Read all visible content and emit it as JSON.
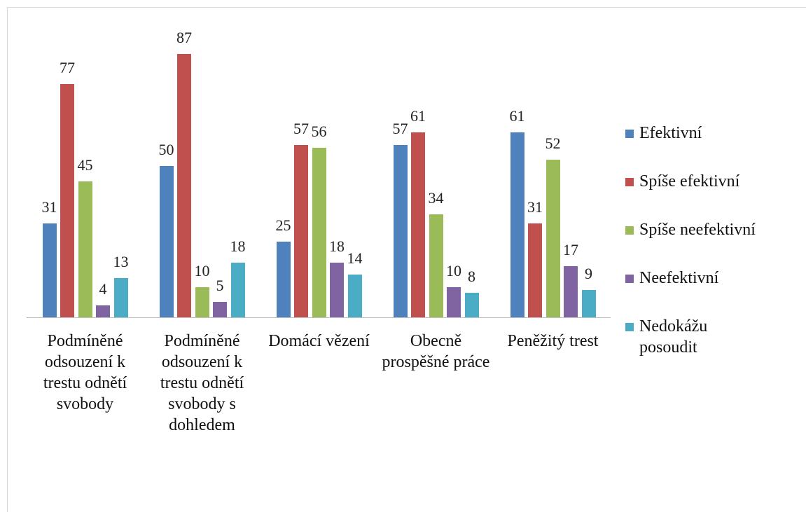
{
  "chart_data": {
    "type": "bar",
    "categories": [
      "Podmíněné odsouzení k trestu odnětí svobody",
      "Podmíněné odsouzení k trestu odnětí svobody s dohledem",
      "Domácí vězení",
      "Obecně prospěšné práce",
      "Peněžitý trest"
    ],
    "series": [
      {
        "name": "Efektivní",
        "color": "#4f81bd",
        "values": [
          31,
          50,
          25,
          57,
          61
        ]
      },
      {
        "name": "Spíše efektivní",
        "color": "#c0504d",
        "values": [
          77,
          87,
          57,
          61,
          31
        ]
      },
      {
        "name": "Spíše neefektivní",
        "color": "#9bbb59",
        "values": [
          45,
          10,
          56,
          34,
          52
        ]
      },
      {
        "name": "Neefektivní",
        "color": "#8064a2",
        "values": [
          4,
          5,
          18,
          10,
          17
        ]
      },
      {
        "name": "Nedokážu posoudit",
        "color": "#4bacc6",
        "values": [
          13,
          18,
          14,
          8,
          9
        ]
      }
    ],
    "legend": "right"
  }
}
